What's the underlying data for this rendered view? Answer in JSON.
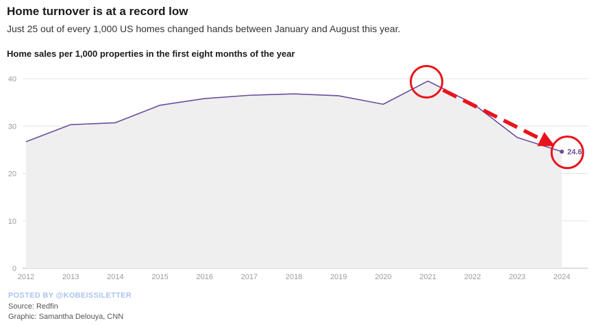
{
  "header": {
    "title": "Home turnover is at a record low",
    "subtitle": "Just 25 out of every 1,000 US homes changed hands between January and August this year."
  },
  "footer": {
    "posted_by": "POSTED BY @KOBEISSILETTER",
    "source": "Source: Redfin",
    "credit": "Graphic: Samantha Delouya, CNN"
  },
  "colors": {
    "line": "#6a4c9c",
    "area": "#efefef",
    "grid": "#e3e3e3",
    "annotation": "#e8141c"
  },
  "chart_data": {
    "type": "area",
    "title": "Home sales per 1,000 properties in the first eight months of the year",
    "xlabel": "",
    "ylabel": "",
    "x": [
      "2012",
      "2013",
      "2014",
      "2015",
      "2016",
      "2017",
      "2018",
      "2019",
      "2020",
      "2021",
      "2022",
      "2023",
      "2024"
    ],
    "series": [
      {
        "values": [
          26.7,
          30.3,
          30.7,
          34.4,
          35.8,
          36.5,
          36.8,
          36.4,
          34.6,
          39.5,
          34.8,
          27.6,
          24.6
        ]
      }
    ],
    "ylim": [
      0,
      40
    ],
    "yticks": [
      0,
      10,
      20,
      30,
      40
    ],
    "grid": true,
    "last_point_label": "24.6",
    "annotations": [
      {
        "type": "circle",
        "at": "2021"
      },
      {
        "type": "circle",
        "at": "2024"
      },
      {
        "type": "dashed-arrow",
        "from": "2021",
        "to": "2024"
      }
    ]
  }
}
